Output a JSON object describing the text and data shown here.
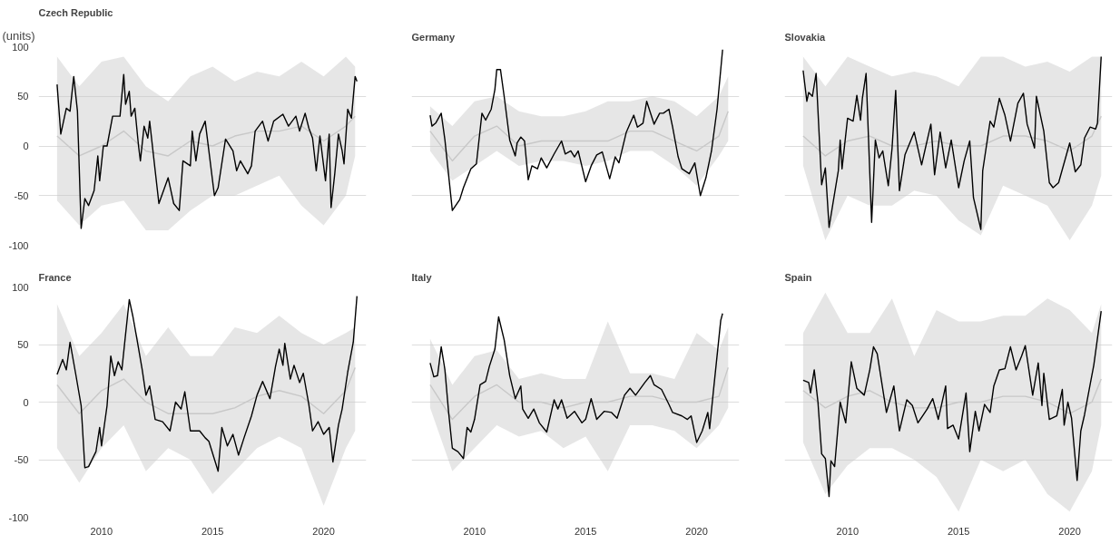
{
  "chart_data": [
    {
      "type": "line",
      "title": "Czech Republic",
      "ylabel": "(units)",
      "xlim": [
        "2007-03",
        "2021-12"
      ],
      "ylim": [
        -100,
        100
      ],
      "xticks": [
        "2010",
        "2015",
        "2020"
      ],
      "yticks": [
        -100,
        -50,
        0,
        50,
        100
      ],
      "grid": "y",
      "tick_labels": "y",
      "series": [
        {
          "color": "#c8c8c8",
          "x": [
            "2008-01",
            "2009-01",
            "2010-01",
            "2011-01",
            "2012-01",
            "2013-01",
            "2014-01",
            "2015-01",
            "2016-01",
            "2017-01",
            "2018-01",
            "2019-01",
            "2020-01",
            "2021-01",
            "2021-06"
          ],
          "values": [
            10,
            -10,
            0,
            15,
            -5,
            -10,
            5,
            0,
            10,
            15,
            15,
            20,
            5,
            20,
            30
          ],
          "lower": [
            -55,
            -80,
            -60,
            -55,
            -85,
            -85,
            -65,
            -50,
            -50,
            -40,
            -30,
            -60,
            -80,
            -50,
            -10
          ],
          "upper": [
            90,
            60,
            85,
            90,
            60,
            45,
            70,
            80,
            65,
            75,
            70,
            85,
            70,
            90,
            80
          ]
        },
        {
          "color": "#000000",
          "x": [
            "2008-01",
            "2008-03",
            "2008-06",
            "2008-08",
            "2008-10",
            "2008-12",
            "2009-02",
            "2009-04",
            "2009-06",
            "2009-09",
            "2009-11",
            "2009-12",
            "2010-02",
            "2010-04",
            "2010-07",
            "2010-09",
            "2010-11",
            "2011-01",
            "2011-02",
            "2011-04",
            "2011-05",
            "2011-07",
            "2011-09",
            "2011-10",
            "2011-12",
            "2012-02",
            "2012-03",
            "2012-06",
            "2012-08",
            "2013-01",
            "2013-04",
            "2013-07",
            "2013-09",
            "2014-01",
            "2014-02",
            "2014-04",
            "2014-06",
            "2014-09",
            "2015-02",
            "2015-04",
            "2015-08",
            "2015-12",
            "2016-02",
            "2016-04",
            "2016-08",
            "2016-10",
            "2016-12",
            "2017-04",
            "2017-07",
            "2017-10",
            "2018-03",
            "2018-06",
            "2018-10",
            "2018-12",
            "2019-03",
            "2019-05",
            "2019-07",
            "2019-09",
            "2019-11",
            "2020-02",
            "2020-04",
            "2020-05",
            "2020-07",
            "2020-09",
            "2020-11",
            "2020-12",
            "2021-02",
            "2021-04",
            "2021-06",
            "2021-07"
          ],
          "values": [
            62,
            12,
            38,
            35,
            70,
            35,
            -83,
            -53,
            -60,
            -45,
            -10,
            -35,
            0,
            0,
            30,
            30,
            30,
            72,
            42,
            55,
            30,
            38,
            0,
            -15,
            20,
            8,
            25,
            -25,
            -58,
            -32,
            -58,
            -65,
            -15,
            -20,
            15,
            -15,
            12,
            25,
            -50,
            -42,
            7,
            -5,
            -25,
            -15,
            -28,
            -20,
            15,
            25,
            5,
            25,
            32,
            20,
            30,
            15,
            33,
            18,
            8,
            -25,
            10,
            -35,
            12,
            -62,
            -28,
            12,
            -5,
            -18,
            37,
            28,
            70,
            65
          ]
        }
      ]
    },
    {
      "type": "line",
      "title": "Germany",
      "xlim": [
        "2007-03",
        "2021-12"
      ],
      "ylim": [
        -100,
        100
      ],
      "xticks": [
        "2010",
        "2015",
        "2020"
      ],
      "yticks": [
        -100,
        -50,
        0,
        50,
        100
      ],
      "grid": "y",
      "tick_labels": false,
      "series": [
        {
          "color": "#c8c8c8",
          "x": [
            "2008-01",
            "2009-01",
            "2010-01",
            "2011-01",
            "2012-01",
            "2013-01",
            "2014-01",
            "2015-01",
            "2016-01",
            "2017-01",
            "2018-01",
            "2019-01",
            "2020-01",
            "2021-01",
            "2021-06"
          ],
          "values": [
            15,
            -15,
            10,
            20,
            0,
            5,
            5,
            5,
            5,
            15,
            15,
            5,
            -5,
            10,
            35
          ],
          "lower": [
            -5,
            -35,
            -20,
            -5,
            -20,
            -15,
            -15,
            -20,
            -15,
            -5,
            -5,
            -20,
            -40,
            -10,
            5
          ],
          "upper": [
            40,
            20,
            45,
            50,
            35,
            30,
            30,
            35,
            45,
            45,
            50,
            45,
            30,
            50,
            70
          ]
        },
        {
          "color": "#000000",
          "x": [
            "2008-01",
            "2008-02",
            "2008-04",
            "2008-07",
            "2008-09",
            "2009-01",
            "2009-05",
            "2009-07",
            "2009-11",
            "2010-02",
            "2010-05",
            "2010-07",
            "2010-10",
            "2010-12",
            "2011-01",
            "2011-03",
            "2011-05",
            "2011-08",
            "2011-11",
            "2011-12",
            "2012-02",
            "2012-04",
            "2012-06",
            "2012-08",
            "2012-11",
            "2013-01",
            "2013-04",
            "2013-08",
            "2013-12",
            "2014-02",
            "2014-05",
            "2014-07",
            "2014-09",
            "2015-01",
            "2015-04",
            "2015-07",
            "2015-10",
            "2016-02",
            "2016-05",
            "2016-07",
            "2016-11",
            "2017-03",
            "2017-05",
            "2017-08",
            "2017-10",
            "2018-02",
            "2018-05",
            "2018-07",
            "2018-10",
            "2018-12",
            "2019-03",
            "2019-05",
            "2019-09",
            "2019-12",
            "2020-03",
            "2020-06",
            "2020-09",
            "2020-12",
            "2021-03"
          ],
          "values": [
            31,
            20,
            23,
            33,
            6,
            -65,
            -54,
            -42,
            -23,
            -18,
            33,
            26,
            37,
            57,
            77,
            77,
            50,
            6,
            -10,
            3,
            9,
            5,
            -34,
            -20,
            -23,
            -12,
            -22,
            -8,
            5,
            -8,
            -5,
            -11,
            -5,
            -36,
            -20,
            -9,
            -6,
            -33,
            -11,
            -17,
            14,
            31,
            19,
            23,
            45,
            22,
            33,
            33,
            37,
            19,
            -11,
            -23,
            -28,
            -17,
            -50,
            -32,
            -5,
            37,
            97
          ]
        }
      ]
    },
    {
      "type": "line",
      "title": "Slovakia",
      "xlim": [
        "2007-03",
        "2021-12"
      ],
      "ylim": [
        -100,
        100
      ],
      "xticks": [
        "2010",
        "2015",
        "2020"
      ],
      "yticks": [
        -100,
        -50,
        0,
        50,
        100
      ],
      "grid": "y",
      "tick_labels": false,
      "series": [
        {
          "color": "#c8c8c8",
          "x": [
            "2008-01",
            "2009-01",
            "2010-01",
            "2011-01",
            "2012-01",
            "2013-01",
            "2014-01",
            "2015-01",
            "2016-01",
            "2017-01",
            "2018-01",
            "2019-01",
            "2020-01",
            "2021-01",
            "2021-06"
          ],
          "values": [
            10,
            -10,
            5,
            10,
            0,
            0,
            5,
            0,
            0,
            10,
            10,
            5,
            -5,
            10,
            30
          ],
          "lower": [
            -20,
            -95,
            -50,
            -60,
            -60,
            -45,
            -50,
            -75,
            -90,
            -40,
            -50,
            -60,
            -95,
            -60,
            -30
          ],
          "upper": [
            90,
            60,
            90,
            80,
            70,
            75,
            70,
            60,
            90,
            90,
            80,
            85,
            75,
            90,
            90
          ]
        },
        {
          "color": "#000000",
          "x": [
            "2008-01",
            "2008-03",
            "2008-04",
            "2008-06",
            "2008-08",
            "2008-11",
            "2009-01",
            "2009-03",
            "2009-05",
            "2009-08",
            "2009-09",
            "2009-10",
            "2010-01",
            "2010-04",
            "2010-06",
            "2010-08",
            "2010-09",
            "2010-11",
            "2011-02",
            "2011-04",
            "2011-06",
            "2011-08",
            "2011-11",
            "2012-01",
            "2012-03",
            "2012-05",
            "2012-08",
            "2013-01",
            "2013-05",
            "2013-10",
            "2013-12",
            "2014-03",
            "2014-06",
            "2014-09",
            "2015-01",
            "2015-04",
            "2015-07",
            "2015-09",
            "2016-01",
            "2016-02",
            "2016-06",
            "2016-08",
            "2016-11",
            "2017-02",
            "2017-05",
            "2017-09",
            "2017-12",
            "2018-02",
            "2018-06",
            "2018-07",
            "2018-11",
            "2019-02",
            "2019-04",
            "2019-07",
            "2020-01",
            "2020-04",
            "2020-07",
            "2020-09",
            "2020-12",
            "2021-03",
            "2021-04",
            "2021-06"
          ],
          "values": [
            76,
            45,
            54,
            50,
            73,
            -39,
            -22,
            -82,
            -59,
            -25,
            6,
            -23,
            28,
            25,
            51,
            26,
            48,
            73,
            -77,
            6,
            -12,
            -5,
            -40,
            -3,
            56,
            -45,
            -9,
            14,
            -19,
            22,
            -29,
            14,
            -22,
            6,
            -42,
            -15,
            5,
            -52,
            -84,
            -25,
            25,
            19,
            48,
            31,
            5,
            43,
            53,
            22,
            -2,
            50,
            15,
            -37,
            -42,
            -37,
            3,
            -26,
            -19,
            8,
            19,
            17,
            23,
            90
          ]
        }
      ]
    },
    {
      "type": "line",
      "title": "France",
      "xlim": [
        "2007-03",
        "2021-12"
      ],
      "ylim": [
        -100,
        100
      ],
      "xticks": [
        "2010",
        "2015",
        "2020"
      ],
      "yticks": [
        -100,
        -50,
        0,
        50,
        100
      ],
      "grid": "y",
      "series": [
        {
          "color": "#c8c8c8",
          "x": [
            "2008-01",
            "2009-01",
            "2010-01",
            "2011-01",
            "2012-01",
            "2013-01",
            "2014-01",
            "2015-01",
            "2016-01",
            "2017-01",
            "2018-01",
            "2019-01",
            "2020-01",
            "2021-01",
            "2021-06"
          ],
          "values": [
            15,
            -10,
            10,
            20,
            0,
            -10,
            -10,
            -10,
            -5,
            5,
            10,
            5,
            -10,
            10,
            30
          ],
          "lower": [
            -40,
            -70,
            -40,
            -20,
            -60,
            -40,
            -50,
            -80,
            -60,
            -40,
            -30,
            -40,
            -90,
            -40,
            -25
          ],
          "upper": [
            85,
            40,
            60,
            85,
            40,
            65,
            40,
            40,
            65,
            60,
            75,
            60,
            50,
            60,
            65
          ]
        },
        {
          "color": "#000000",
          "x": [
            "2008-01",
            "2008-04",
            "2008-06",
            "2008-08",
            "2008-11",
            "2009-02",
            "2009-04",
            "2009-06",
            "2009-10",
            "2009-12",
            "2010-01",
            "2010-04",
            "2010-06",
            "2010-08",
            "2010-10",
            "2010-12",
            "2011-02",
            "2011-04",
            "2011-06",
            "2011-08",
            "2011-11",
            "2012-01",
            "2012-03",
            "2012-06",
            "2012-10",
            "2013-02",
            "2013-05",
            "2013-08",
            "2013-10",
            "2014-01",
            "2014-06",
            "2014-09",
            "2014-11",
            "2015-04",
            "2015-06",
            "2015-09",
            "2015-12",
            "2016-03",
            "2016-06",
            "2016-10",
            "2017-01",
            "2017-04",
            "2017-08",
            "2017-11",
            "2018-01",
            "2018-03",
            "2018-04",
            "2018-07",
            "2018-09",
            "2018-12",
            "2019-02",
            "2019-05",
            "2019-07",
            "2019-10",
            "2020-01",
            "2020-04",
            "2020-06",
            "2020-09",
            "2020-11",
            "2021-02",
            "2021-05",
            "2021-07"
          ],
          "values": [
            24,
            37,
            28,
            52,
            25,
            -3,
            -57,
            -56,
            -43,
            -22,
            -38,
            -3,
            40,
            23,
            35,
            28,
            59,
            89,
            74,
            56,
            28,
            6,
            14,
            -15,
            -17,
            -25,
            0,
            -6,
            9,
            -25,
            -25,
            -31,
            -34,
            -60,
            -22,
            -38,
            -28,
            -46,
            -31,
            -12,
            6,
            18,
            3,
            31,
            46,
            32,
            51,
            20,
            32,
            17,
            25,
            -2,
            -25,
            -17,
            -28,
            -22,
            -52,
            -20,
            -6,
            26,
            52,
            92
          ]
        }
      ]
    },
    {
      "type": "line",
      "title": "Italy",
      "xlim": [
        "2007-03",
        "2021-12"
      ],
      "ylim": [
        -100,
        100
      ],
      "xticks": [
        "2010",
        "2015",
        "2020"
      ],
      "yticks": [
        -100,
        -50,
        0,
        50,
        100
      ],
      "grid": "y",
      "tick_labels": "x",
      "series": [
        {
          "color": "#c8c8c8",
          "x": [
            "2008-01",
            "2009-01",
            "2010-01",
            "2011-01",
            "2012-01",
            "2013-01",
            "2014-01",
            "2015-01",
            "2016-01",
            "2017-01",
            "2018-01",
            "2019-01",
            "2020-01",
            "2021-01",
            "2021-06"
          ],
          "values": [
            15,
            -15,
            5,
            15,
            0,
            0,
            -5,
            0,
            0,
            5,
            5,
            0,
            0,
            5,
            30
          ],
          "lower": [
            -5,
            -60,
            -40,
            -20,
            -30,
            -25,
            -40,
            -30,
            -60,
            -20,
            -20,
            -25,
            -40,
            -20,
            -5
          ],
          "upper": [
            55,
            15,
            40,
            45,
            20,
            25,
            20,
            20,
            70,
            25,
            25,
            20,
            60,
            45,
            65
          ]
        },
        {
          "color": "#000000",
          "x": [
            "2008-01",
            "2008-03",
            "2008-05",
            "2008-07",
            "2008-09",
            "2008-11",
            "2009-01",
            "2009-04",
            "2009-07",
            "2009-09",
            "2009-11",
            "2010-01",
            "2010-04",
            "2010-07",
            "2010-09",
            "2010-12",
            "2011-02",
            "2011-05",
            "2011-08",
            "2011-11",
            "2012-02",
            "2012-03",
            "2012-06",
            "2012-09",
            "2012-12",
            "2013-04",
            "2013-08",
            "2013-10",
            "2013-12",
            "2014-03",
            "2014-07",
            "2014-11",
            "2015-01",
            "2015-04",
            "2015-07",
            "2015-11",
            "2016-03",
            "2016-06",
            "2016-10",
            "2017-01",
            "2017-04",
            "2017-09",
            "2017-12",
            "2018-02",
            "2018-06",
            "2018-10",
            "2018-12",
            "2019-05",
            "2019-08",
            "2019-10",
            "2020-01",
            "2020-04",
            "2020-07",
            "2020-08",
            "2020-10",
            "2021-02",
            "2021-03"
          ],
          "values": [
            34,
            22,
            23,
            48,
            28,
            -9,
            -40,
            -43,
            -49,
            -22,
            -26,
            -15,
            15,
            18,
            31,
            46,
            74,
            54,
            23,
            3,
            14,
            -6,
            -14,
            -6,
            -18,
            -26,
            2,
            -6,
            2,
            -14,
            -8,
            -18,
            -15,
            3,
            -15,
            -8,
            -9,
            -14,
            6,
            12,
            6,
            17,
            23,
            15,
            11,
            -2,
            -9,
            -12,
            -15,
            -12,
            -35,
            -25,
            -9,
            -23,
            9,
            71,
            77
          ]
        }
      ]
    },
    {
      "type": "line",
      "title": "Spain",
      "xlim": [
        "2007-03",
        "2021-12"
      ],
      "ylim": [
        -100,
        100
      ],
      "xticks": [
        "2010",
        "2015",
        "2020"
      ],
      "yticks": [
        -100,
        -50,
        0,
        50,
        100
      ],
      "grid": "y",
      "tick_labels": "x",
      "series": [
        {
          "color": "#c8c8c8",
          "x": [
            "2008-01",
            "2009-01",
            "2010-01",
            "2011-01",
            "2012-01",
            "2013-01",
            "2014-01",
            "2015-01",
            "2016-01",
            "2017-01",
            "2018-01",
            "2019-01",
            "2020-01",
            "2021-01",
            "2021-06"
          ],
          "values": [
            10,
            -5,
            5,
            10,
            0,
            -5,
            -5,
            0,
            0,
            5,
            5,
            0,
            -10,
            0,
            20
          ],
          "lower": [
            -35,
            -80,
            -55,
            -40,
            -40,
            -50,
            -65,
            -95,
            -50,
            -60,
            -50,
            -80,
            -95,
            -60,
            -20
          ],
          "upper": [
            60,
            95,
            60,
            60,
            90,
            40,
            80,
            70,
            70,
            75,
            75,
            90,
            80,
            60,
            85
          ]
        },
        {
          "color": "#000000",
          "x": [
            "2008-01",
            "2008-04",
            "2008-05",
            "2008-07",
            "2008-09",
            "2008-11",
            "2009-01",
            "2009-03",
            "2009-04",
            "2009-06",
            "2009-09",
            "2009-12",
            "2010-03",
            "2010-06",
            "2010-10",
            "2011-01",
            "2011-03",
            "2011-05",
            "2011-10",
            "2012-02",
            "2012-05",
            "2012-09",
            "2012-12",
            "2013-03",
            "2013-08",
            "2013-11",
            "2014-02",
            "2014-06",
            "2014-07",
            "2014-10",
            "2015-01",
            "2015-05",
            "2015-07",
            "2015-10",
            "2015-12",
            "2016-03",
            "2016-06",
            "2016-08",
            "2016-11",
            "2017-02",
            "2017-05",
            "2017-08",
            "2017-11",
            "2018-01",
            "2018-05",
            "2018-08",
            "2018-10",
            "2018-11",
            "2019-02",
            "2019-06",
            "2019-09",
            "2019-10",
            "2019-12",
            "2020-02",
            "2020-05",
            "2020-07",
            "2020-09",
            "2020-12",
            "2021-02",
            "2021-06"
          ],
          "values": [
            19,
            17,
            8,
            28,
            0,
            -45,
            -49,
            -82,
            -51,
            -56,
            0,
            -18,
            35,
            12,
            6,
            28,
            48,
            42,
            -9,
            14,
            -25,
            2,
            -3,
            -18,
            -6,
            3,
            -15,
            14,
            -23,
            -20,
            -32,
            8,
            -43,
            -8,
            -25,
            -2,
            -9,
            14,
            28,
            29,
            48,
            28,
            40,
            49,
            6,
            34,
            -3,
            25,
            -15,
            -12,
            11,
            -20,
            0,
            -14,
            -68,
            -25,
            -11,
            15,
            32,
            79
          ]
        }
      ]
    }
  ]
}
